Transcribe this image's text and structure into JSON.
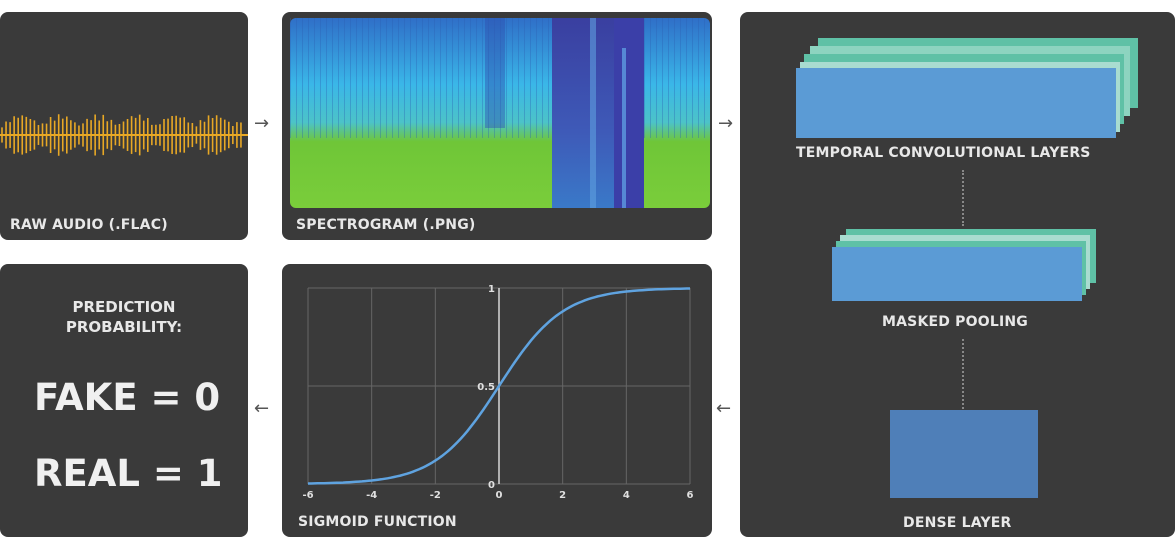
{
  "panels": {
    "raw_audio": {
      "label": "RAW AUDIO (.FLAC)",
      "wave_color": "#e8a825"
    },
    "spectrogram": {
      "label": "SPECTROGRAM (.PNG)"
    },
    "temporal": {
      "label": "TEMPORAL CONVOLUTIONAL LAYERS"
    },
    "masked": {
      "label": "MASKED POOLING"
    },
    "dense": {
      "label": "DENSE LAYER"
    },
    "sigmoid": {
      "label": "SIGMOID FUNCTION"
    },
    "prediction": {
      "heading_line1": "PREDICTION",
      "heading_line2": "PROBABILITY:",
      "fake": "FAKE = 0",
      "real": "REAL = 1"
    }
  },
  "arrows": {
    "right": "→",
    "left": "←"
  },
  "colors": {
    "panel_bg": "#3a3a3a",
    "layer_blue": "#5b9bd5",
    "layer_teal": "#5fc1a6",
    "layer_mint": "#8dd4c0",
    "curve": "#5fa3e0",
    "spec_cyan": "#3ab7e8",
    "spec_green": "#6fc638",
    "spec_dark": "#3b3fa8"
  },
  "chart_data": {
    "type": "line",
    "title": "",
    "xlabel": "",
    "ylabel": "",
    "function": "sigmoid",
    "xlim": [
      -6,
      6
    ],
    "ylim": [
      0,
      1
    ],
    "x_ticks": [
      "-6",
      "-4",
      "-2",
      "0",
      "2",
      "4",
      "6"
    ],
    "y_ticks": [
      "0",
      "0.5",
      "1"
    ],
    "grid": true,
    "series": [
      {
        "x": [
          -6,
          -5,
          -4,
          -3,
          -2,
          -1,
          0,
          1,
          2,
          3,
          4,
          5,
          6
        ],
        "values": [
          0.002,
          0.007,
          0.018,
          0.047,
          0.119,
          0.269,
          0.5,
          0.731,
          0.881,
          0.953,
          0.982,
          0.993,
          0.998
        ]
      }
    ]
  }
}
